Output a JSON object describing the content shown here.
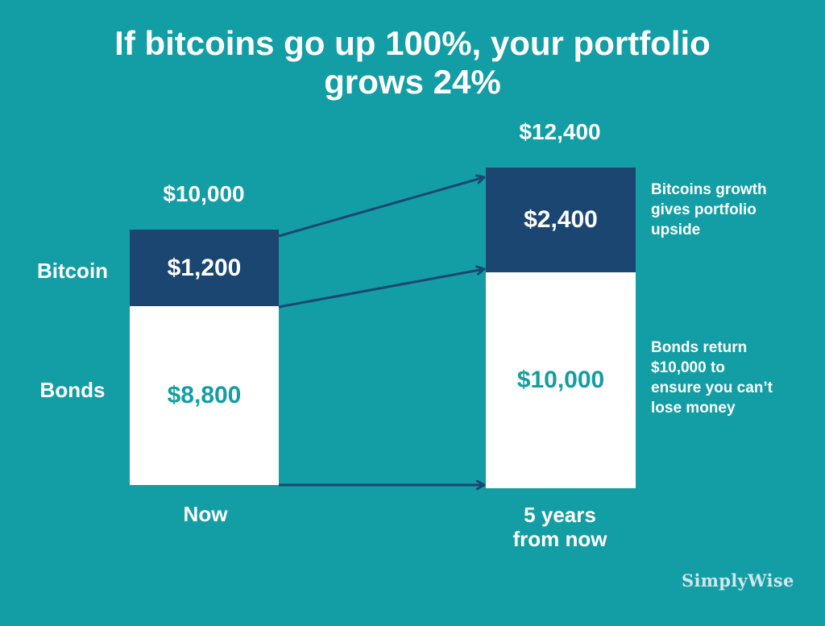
{
  "colors": {
    "background": "#129ea4",
    "bitcoin": "#1b4672",
    "bonds": "#ffffff",
    "bond_text": "#129ea4",
    "arrow": "#1b4672"
  },
  "title": {
    "line1": "If bitcoins go up 100%, your portfolio",
    "line2": "grows 24%"
  },
  "chart_data": {
    "type": "bar",
    "stacked": true,
    "categories": [
      "Now",
      "5 years from now"
    ],
    "series": [
      {
        "name": "Bonds",
        "values": [
          8800,
          10000
        ],
        "labels": [
          "$8,800",
          "$10,000"
        ]
      },
      {
        "name": "Bitcoin",
        "values": [
          1200,
          2400
        ],
        "labels": [
          "$1,200",
          "$2,400"
        ]
      }
    ],
    "totals": [
      10000,
      12400
    ],
    "total_labels": [
      "$10,000",
      "$12,400"
    ],
    "row_labels": [
      "Bitcoin",
      "Bonds"
    ],
    "category_labels": {
      "now": "Now",
      "future_line1": "5 years",
      "future_line2": "from now"
    },
    "annotations": {
      "bitcoin": [
        "Bitcoins growth",
        "gives portfolio",
        "upside"
      ],
      "bonds": [
        "Bonds return",
        "$10,000 to",
        "ensure you can’t",
        "lose money"
      ]
    }
  },
  "brand": "SimplyWise"
}
